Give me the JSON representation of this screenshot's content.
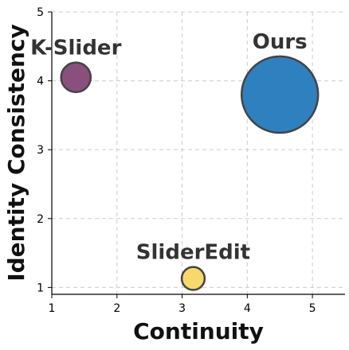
{
  "chart_data": {
    "type": "scatter",
    "xlabel": "Continuity",
    "ylabel": "Identity Consistency",
    "xlim": [
      1,
      5.5
    ],
    "ylim": [
      0.9,
      5
    ],
    "xticks": [
      1,
      2,
      3,
      4,
      5
    ],
    "yticks": [
      1,
      2,
      3,
      4,
      5
    ],
    "grid": true,
    "points": [
      {
        "label": "K-Slider",
        "x": 1.37,
        "y": 4.05,
        "size": 0.15,
        "color": "#8a4f7d"
      },
      {
        "label": "Ours",
        "x": 4.5,
        "y": 3.8,
        "size": 1.0,
        "color": "#2f80be"
      },
      {
        "label": "SliderEdit",
        "x": 3.17,
        "y": 1.13,
        "size": 0.09,
        "color": "#f7d86a"
      }
    ]
  }
}
